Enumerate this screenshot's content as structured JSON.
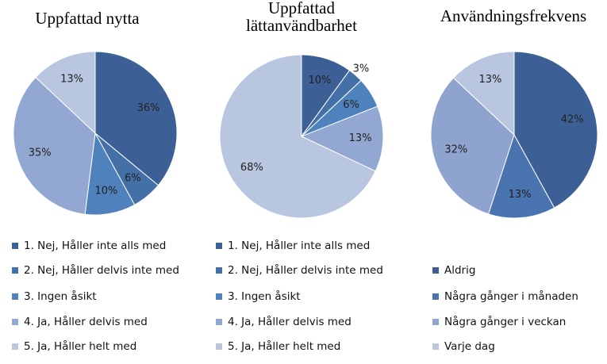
{
  "chart_data": [
    {
      "type": "pie",
      "title": "Uppfattad nytta",
      "categories": [
        "1. Nej, Håller inte alls med",
        "2. Nej, Håller delvis inte med",
        "3. Ingen åsikt",
        "4. Ja, Håller delvis med",
        "5. Ja, Håller helt med"
      ],
      "values": [
        36,
        6,
        10,
        35,
        13
      ],
      "value_labels": [
        "36%",
        "6%",
        "10%",
        "35%",
        "13%"
      ],
      "colors": [
        "#3c6096",
        "#4470a8",
        "#4f81bd",
        "#92a7d1",
        "#b9c6e0"
      ]
    },
    {
      "type": "pie",
      "title": "Uppfattad lättanvändbarhet",
      "categories": [
        "1. Nej, Håller inte alls med",
        "2. Nej, Håller delvis inte med",
        "3. Ingen åsikt",
        "4. Ja, Håller delvis med",
        "5. Ja, Håller helt med"
      ],
      "values": [
        10,
        3,
        6,
        13,
        68
      ],
      "value_labels": [
        "10%",
        "3%",
        "6%",
        "13%",
        "68%"
      ],
      "colors": [
        "#3c6096",
        "#4470a8",
        "#4f81bd",
        "#92a7d1",
        "#b9c6e0"
      ]
    },
    {
      "type": "pie",
      "title": "Användningsfrekvens",
      "categories": [
        "Aldrig",
        "Några gånger i månaden",
        "Några gånger i veckan",
        "Varje dag"
      ],
      "values": [
        42,
        13,
        32,
        13
      ],
      "value_labels": [
        "42%",
        "13%",
        "32%",
        "13%"
      ],
      "colors": [
        "#3c6096",
        "#4a74b0",
        "#8ea4cf",
        "#b9c6e0"
      ]
    }
  ]
}
